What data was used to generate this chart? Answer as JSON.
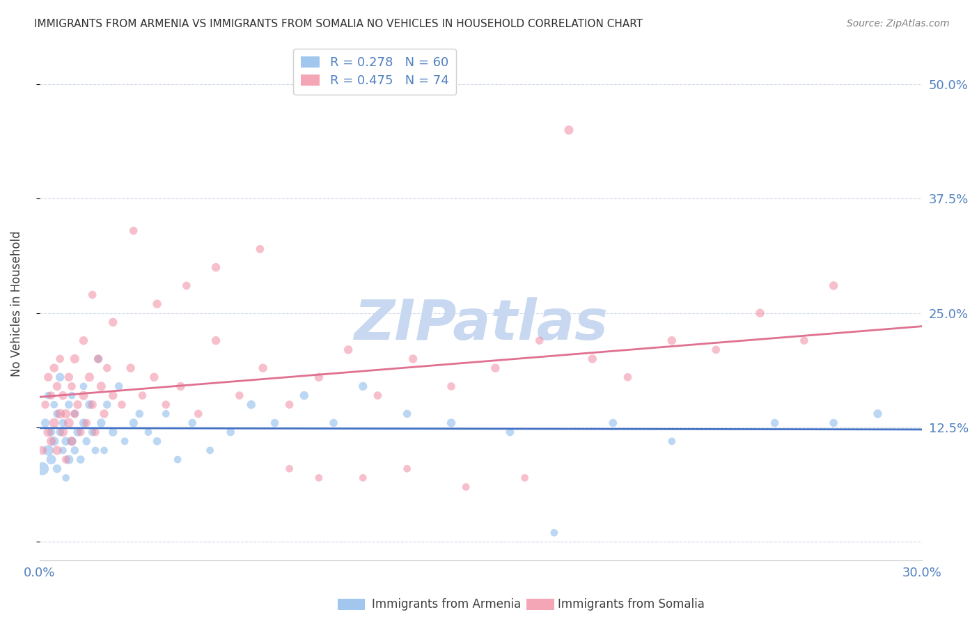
{
  "title": "IMMIGRANTS FROM ARMENIA VS IMMIGRANTS FROM SOMALIA NO VEHICLES IN HOUSEHOLD CORRELATION CHART",
  "source": "Source: ZipAtlas.com",
  "ylabel": "No Vehicles in Household",
  "xlim": [
    0.0,
    0.3
  ],
  "ylim": [
    -0.02,
    0.54
  ],
  "yticks": [
    0.0,
    0.125,
    0.25,
    0.375,
    0.5
  ],
  "ytick_labels": [
    "",
    "12.5%",
    "25.0%",
    "37.5%",
    "50.0%"
  ],
  "xticks": [
    0.0,
    0.05,
    0.1,
    0.15,
    0.2,
    0.25,
    0.3
  ],
  "xtick_labels": [
    "0.0%",
    "",
    "",
    "",
    "",
    "",
    "30.0%"
  ],
  "legend_entries": [
    {
      "label": "R = 0.278   N = 60",
      "color": "#a8c8f0"
    },
    {
      "label": "R = 0.475   N = 74",
      "color": "#f0a8b8"
    }
  ],
  "armenia_color": "#7ab0e8",
  "somalia_color": "#f08098",
  "armenia_line_color": "#4472c4",
  "somalia_line_color": "#e07090",
  "watermark": "ZIPatlas",
  "watermark_color": "#c8d8f0",
  "background_color": "#ffffff",
  "grid_color": "#d0d8e8",
  "title_color": "#303030",
  "axis_label_color": "#404040",
  "tick_color": "#5080c0",
  "source_color": "#808080",
  "armenia_scatter": {
    "x": [
      0.001,
      0.002,
      0.003,
      0.003,
      0.004,
      0.004,
      0.005,
      0.005,
      0.006,
      0.006,
      0.007,
      0.007,
      0.008,
      0.008,
      0.009,
      0.009,
      0.01,
      0.01,
      0.011,
      0.011,
      0.012,
      0.012,
      0.013,
      0.014,
      0.015,
      0.015,
      0.016,
      0.017,
      0.018,
      0.019,
      0.02,
      0.021,
      0.022,
      0.023,
      0.025,
      0.027,
      0.029,
      0.032,
      0.034,
      0.037,
      0.04,
      0.043,
      0.047,
      0.052,
      0.058,
      0.065,
      0.072,
      0.08,
      0.09,
      0.1,
      0.11,
      0.125,
      0.14,
      0.16,
      0.175,
      0.195,
      0.215,
      0.25,
      0.27,
      0.285
    ],
    "y": [
      0.08,
      0.13,
      0.1,
      0.16,
      0.09,
      0.12,
      0.11,
      0.15,
      0.08,
      0.14,
      0.12,
      0.18,
      0.1,
      0.13,
      0.07,
      0.11,
      0.09,
      0.15,
      0.11,
      0.16,
      0.1,
      0.14,
      0.12,
      0.09,
      0.13,
      0.17,
      0.11,
      0.15,
      0.12,
      0.1,
      0.2,
      0.13,
      0.1,
      0.15,
      0.12,
      0.17,
      0.11,
      0.13,
      0.14,
      0.12,
      0.11,
      0.14,
      0.09,
      0.13,
      0.1,
      0.12,
      0.15,
      0.13,
      0.16,
      0.13,
      0.17,
      0.14,
      0.13,
      0.12,
      0.01,
      0.13,
      0.11,
      0.13,
      0.13,
      0.14
    ],
    "size": [
      180,
      80,
      120,
      60,
      100,
      70,
      90,
      60,
      80,
      70,
      70,
      80,
      60,
      70,
      60,
      80,
      90,
      70,
      80,
      60,
      70,
      60,
      80,
      70,
      80,
      60,
      70,
      80,
      70,
      60,
      70,
      80,
      60,
      70,
      80,
      70,
      60,
      80,
      70,
      60,
      70,
      60,
      60,
      70,
      60,
      70,
      80,
      70,
      80,
      70,
      80,
      70,
      80,
      70,
      60,
      70,
      60,
      70,
      70,
      80
    ]
  },
  "somalia_scatter": {
    "x": [
      0.001,
      0.002,
      0.003,
      0.003,
      0.004,
      0.004,
      0.005,
      0.005,
      0.006,
      0.006,
      0.007,
      0.007,
      0.008,
      0.008,
      0.009,
      0.009,
      0.01,
      0.01,
      0.011,
      0.011,
      0.012,
      0.012,
      0.013,
      0.014,
      0.015,
      0.015,
      0.016,
      0.017,
      0.018,
      0.019,
      0.02,
      0.021,
      0.022,
      0.023,
      0.025,
      0.028,
      0.031,
      0.035,
      0.039,
      0.043,
      0.048,
      0.054,
      0.06,
      0.068,
      0.076,
      0.085,
      0.095,
      0.105,
      0.115,
      0.127,
      0.14,
      0.155,
      0.17,
      0.188,
      0.2,
      0.215,
      0.23,
      0.245,
      0.26,
      0.27,
      0.018,
      0.025,
      0.032,
      0.04,
      0.05,
      0.06,
      0.075,
      0.085,
      0.095,
      0.11,
      0.125,
      0.145,
      0.165,
      0.18
    ],
    "y": [
      0.1,
      0.15,
      0.12,
      0.18,
      0.11,
      0.16,
      0.13,
      0.19,
      0.1,
      0.17,
      0.14,
      0.2,
      0.12,
      0.16,
      0.09,
      0.14,
      0.13,
      0.18,
      0.11,
      0.17,
      0.14,
      0.2,
      0.15,
      0.12,
      0.16,
      0.22,
      0.13,
      0.18,
      0.15,
      0.12,
      0.2,
      0.17,
      0.14,
      0.19,
      0.16,
      0.15,
      0.19,
      0.16,
      0.18,
      0.15,
      0.17,
      0.14,
      0.22,
      0.16,
      0.19,
      0.15,
      0.18,
      0.21,
      0.16,
      0.2,
      0.17,
      0.19,
      0.22,
      0.2,
      0.18,
      0.22,
      0.21,
      0.25,
      0.22,
      0.28,
      0.27,
      0.24,
      0.34,
      0.26,
      0.28,
      0.3,
      0.32,
      0.08,
      0.07,
      0.07,
      0.08,
      0.06,
      0.07,
      0.45
    ],
    "size": [
      80,
      70,
      100,
      80,
      90,
      70,
      100,
      80,
      90,
      80,
      100,
      70,
      90,
      80,
      70,
      90,
      100,
      80,
      90,
      70,
      80,
      90,
      80,
      70,
      90,
      80,
      70,
      90,
      80,
      70,
      80,
      90,
      80,
      70,
      80,
      70,
      80,
      70,
      80,
      70,
      80,
      70,
      80,
      70,
      80,
      70,
      80,
      80,
      70,
      80,
      70,
      80,
      70,
      80,
      70,
      80,
      70,
      80,
      70,
      80,
      70,
      80,
      70,
      80,
      70,
      80,
      70,
      60,
      60,
      60,
      60,
      60,
      60,
      90
    ]
  }
}
